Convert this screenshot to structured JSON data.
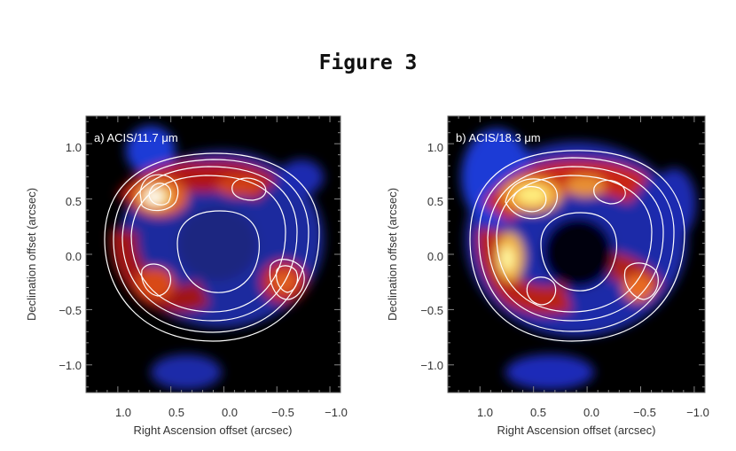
{
  "figure": {
    "title": "Figure 3"
  },
  "colors": {
    "background": "#000000",
    "contour": "#ffffff",
    "frame": "#555555"
  },
  "panels": [
    {
      "label": "a) ACIS/11.7 μm",
      "xlabel": "Right Ascension offset (arcsec)",
      "ylabel": "Declination offset (arcsec)",
      "xticks": [
        "1.0",
        "0.5",
        "0.0",
        "−0.5",
        "−1.0"
      ],
      "yticks": [
        "1.0",
        "0.5",
        "0.0",
        "−0.5",
        "−1.0"
      ]
    },
    {
      "label": "b) ACIS/18.3 μm",
      "xlabel": "Right Ascension offset (arcsec)",
      "ylabel": "Declination offset (arcsec)",
      "xticks": [
        "1.0",
        "0.5",
        "0.0",
        "−0.5",
        "−1.0"
      ],
      "yticks": [
        "1.0",
        "0.5",
        "0.0",
        "−0.5",
        "−1.0"
      ]
    }
  ],
  "axes": {
    "xlim": [
      1.3,
      -1.1
    ],
    "ylim": [
      -1.25,
      1.25
    ],
    "xtick_values": [
      1.0,
      0.5,
      0.0,
      -0.5,
      -1.0
    ],
    "ytick_values": [
      1.0,
      0.5,
      0.0,
      -0.5,
      -1.0
    ]
  }
}
